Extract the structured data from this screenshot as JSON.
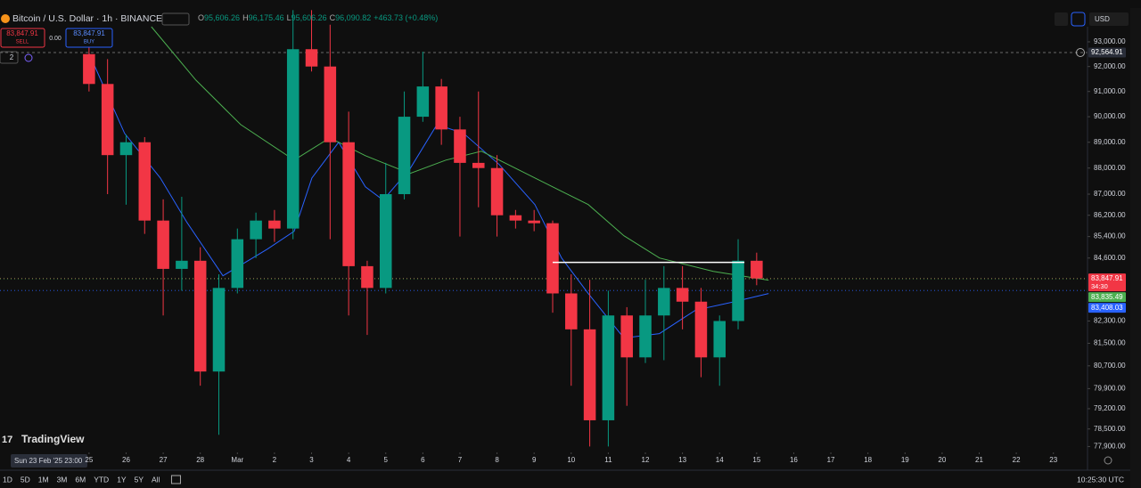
{
  "header": {
    "title": "Bitcoin / U.S. Dollar · 1h · BINANCE",
    "ohlc": [
      "O",
      "95,606.26",
      "H",
      "96,175.46",
      "L",
      "95,606.26",
      "C",
      "96,090.82"
    ],
    "change": "+463.73 (+0.48%)",
    "sell": {
      "price": "83,847.91",
      "label": "SELL"
    },
    "spread": "0.00",
    "buy": {
      "price": "83,847.91",
      "label": "BUY"
    },
    "indicators": "2",
    "currency": "USD"
  },
  "chart_data": {
    "type": "candlestick",
    "log": true,
    "grid": false,
    "up_color": "#089981",
    "down_color": "#f23645",
    "xlim": [
      -2.4,
      26.92
    ],
    "ylim": [
      77700,
      94350
    ],
    "x": [
      0,
      0.5,
      1,
      1.5,
      2,
      2.5,
      3,
      3.5,
      4,
      4.5,
      5,
      5.5,
      6,
      6.5,
      7,
      7.5,
      8,
      8.5,
      9,
      9.5,
      10,
      10.5,
      11,
      11.5,
      12,
      12.5,
      13,
      13.5,
      14,
      14.5,
      15,
      15.5,
      16,
      16.5,
      17,
      17.5,
      18
    ],
    "open": [
      92500,
      91300,
      88500,
      89000,
      86000,
      84200,
      84500,
      80500,
      83500,
      85300,
      86000,
      85700,
      92700,
      92000,
      89000,
      84300,
      83500,
      87000,
      90000,
      91200,
      89500,
      88200,
      88000,
      86200,
      86000,
      85900,
      83300,
      82000,
      78800,
      82500,
      81000,
      82500,
      83500,
      83000,
      81000,
      82300,
      84500
    ],
    "high": [
      92800,
      92300,
      89300,
      89200,
      86800,
      86900,
      85000,
      84000,
      85700,
      86300,
      86400,
      94300,
      94300,
      93700,
      90200,
      84500,
      88200,
      91000,
      92600,
      91500,
      90000,
      91000,
      88500,
      86400,
      86400,
      86000,
      84000,
      83800,
      83400,
      82800,
      83800,
      84300,
      84300,
      83500,
      82500,
      85300,
      84800
    ],
    "low": [
      91000,
      87000,
      86600,
      85500,
      82500,
      83400,
      80000,
      78300,
      83300,
      84600,
      85200,
      85300,
      91800,
      85300,
      82500,
      81800,
      83300,
      86800,
      89800,
      88900,
      85400,
      86500,
      85400,
      85700,
      85600,
      82600,
      80000,
      77900,
      77900,
      79300,
      80800,
      80900,
      82000,
      80300,
      80000,
      82000,
      83600
    ],
    "close": [
      91300,
      88500,
      89000,
      86000,
      84200,
      84500,
      80500,
      83500,
      85300,
      86000,
      85700,
      92700,
      92000,
      89000,
      84300,
      83500,
      87000,
      90000,
      91200,
      89500,
      88200,
      88000,
      86200,
      86000,
      85900,
      83300,
      82000,
      78800,
      82500,
      81000,
      82500,
      83500,
      83000,
      81000,
      82300,
      84500,
      83848
    ],
    "ma_lines": [
      {
        "color": "#2962ff",
        "x": [
          0,
          0.96,
          1.92,
          2.64,
          3.61,
          4.81,
          5.53,
          6.01,
          6.73,
          7.45,
          7.93,
          8.65,
          9.38,
          10.1,
          11.06,
          12.02,
          12.74,
          13.46,
          14.42,
          15.38,
          16.35,
          17.31,
          18.32
        ],
        "values": [
          92530,
          89345,
          87621,
          85932,
          83947,
          84933,
          85598,
          87621,
          88996,
          87281,
          86773,
          87964,
          89692,
          89345,
          88134,
          86604,
          84603,
          83296,
          81690,
          81848,
          82690,
          82972,
          83296
        ]
      },
      {
        "color": "#4caf50",
        "x": [
          1.68,
          2.88,
          4.09,
          5.53,
          6.49,
          7.45,
          8.65,
          9.62,
          10.58,
          12.02,
          13.46,
          14.42,
          15.38,
          16.83,
          18.32
        ],
        "values": [
          93618,
          91456,
          89692,
          88306,
          89170,
          88478,
          87792,
          88306,
          88650,
          87621,
          86604,
          85431,
          84603,
          84110,
          83784
        ]
      }
    ],
    "hline": {
      "value": 84440,
      "x": [
        12.5,
        17.67
      ]
    },
    "xticks": [
      {
        "value": 0,
        "label": "25"
      },
      {
        "value": 1,
        "label": "26"
      },
      {
        "value": 2,
        "label": "27"
      },
      {
        "value": 3,
        "label": "28"
      },
      {
        "value": 4,
        "label": "Mar"
      },
      {
        "value": 5,
        "label": "2"
      },
      {
        "value": 6,
        "label": "3"
      },
      {
        "value": 7,
        "label": "4"
      },
      {
        "value": 8,
        "label": "5"
      },
      {
        "value": 9,
        "label": "6"
      },
      {
        "value": 10,
        "label": "7"
      },
      {
        "value": 11,
        "label": "8"
      },
      {
        "value": 12,
        "label": "9"
      },
      {
        "value": 13,
        "label": "10"
      },
      {
        "value": 14,
        "label": "11"
      },
      {
        "value": 15,
        "label": "12"
      },
      {
        "value": 16,
        "label": "13"
      },
      {
        "value": 17,
        "label": "14"
      },
      {
        "value": 18,
        "label": "15"
      },
      {
        "value": 19,
        "label": "16"
      },
      {
        "value": 20,
        "label": "17"
      },
      {
        "value": 21,
        "label": "18"
      },
      {
        "value": 22,
        "label": "19"
      },
      {
        "value": 23,
        "label": "20"
      },
      {
        "value": 24,
        "label": "21"
      },
      {
        "value": 25,
        "label": "22"
      },
      {
        "value": 26,
        "label": "23"
      }
    ],
    "yticks": [
      {
        "value": 93000,
        "label": "93,000.00"
      },
      {
        "value": 92000,
        "label": "92,000.00"
      },
      {
        "value": 91000,
        "label": "91,000.00"
      },
      {
        "value": 90000,
        "label": "90,000.00"
      },
      {
        "value": 89000,
        "label": "89,000.00"
      },
      {
        "value": 88000,
        "label": "88,000.00"
      },
      {
        "value": 87000,
        "label": "87,000.00"
      },
      {
        "value": 86200,
        "label": "86,200.00"
      },
      {
        "value": 85400,
        "label": "85,400.00"
      },
      {
        "value": 84600,
        "label": "84,600.00"
      },
      {
        "value": 82300,
        "label": "82,300.00"
      },
      {
        "value": 81500,
        "label": "81,500.00"
      },
      {
        "value": 80700,
        "label": "80,700.00"
      },
      {
        "value": 79900,
        "label": "79,900.00"
      },
      {
        "value": 79200,
        "label": "79,200.00"
      },
      {
        "value": 78500,
        "label": "78,500.00"
      },
      {
        "value": 77900,
        "label": "77,900.00"
      }
    ],
    "price_labels": [
      {
        "value": 92564.91,
        "label": "92,564.91",
        "color": "#2a2e39",
        "dashed": true
      },
      {
        "value": 83847.91,
        "label": "83,847.91",
        "color": "#f23645",
        "countdown": "34:30"
      },
      {
        "value": 83835.49,
        "label": "83,835.49",
        "color": "#4caf50"
      },
      {
        "value": 83408.03,
        "label": "83,408.03",
        "color": "#2962ff"
      }
    ]
  },
  "footer": {
    "ranges": [
      "1D",
      "5D",
      "1M",
      "3M",
      "6M",
      "YTD",
      "1Y",
      "5Y",
      "All"
    ],
    "time": "10:25:30 UTC",
    "crosshair": "Sun 23 Feb '25  23:00",
    "logo": "TradingView"
  }
}
